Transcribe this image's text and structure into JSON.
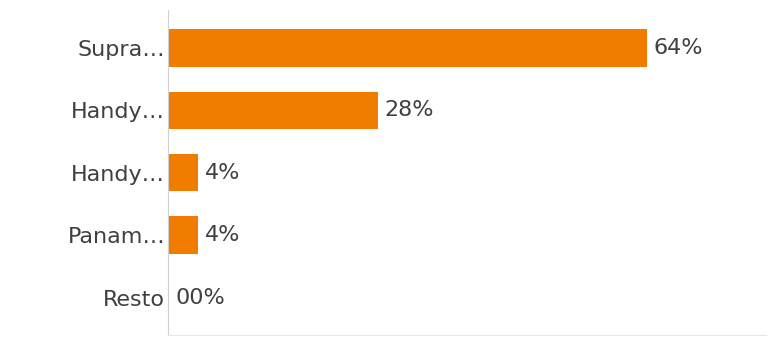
{
  "chart_data": {
    "type": "bar",
    "orientation": "horizontal",
    "categories": [
      "Supra…",
      "Handy…",
      "Handy…",
      "Panam…",
      "Resto"
    ],
    "values": [
      64,
      28,
      4,
      4,
      0
    ],
    "value_labels": [
      "64%",
      "28%",
      "4%",
      "4%",
      "00%"
    ],
    "color": "#f07d00",
    "xlim": [
      0,
      80
    ],
    "data_labels": true,
    "tick_labels": "y",
    "grid": false
  }
}
